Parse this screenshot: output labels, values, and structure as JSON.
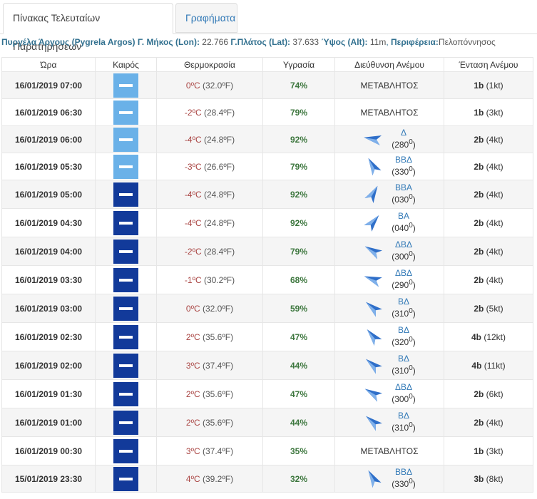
{
  "tabs": [
    {
      "label": "Πίνακας Τελευταίων Παρατηρήσεων"
    },
    {
      "label": "Γραφήματα"
    }
  ],
  "station": {
    "name": "Πυργέλα Άργους (Pygrela Argos)",
    "lon_label": "Γ. Μήκος (Lon):",
    "lon": "22.766",
    "lat_label": "Γ.Πλάτος (Lat):",
    "lat": "37.633",
    "alt_label": "Ύψος (Alt):",
    "alt": "11m",
    "region_label": "Περιφέρεια:",
    "region": "Πελοπόννησος"
  },
  "columns": [
    "Ώρα",
    "Καιρός",
    "Θερμοκρασία",
    "Υγρασία",
    "Διεύθυνση Ανέμου",
    "Ένταση Ανέμου"
  ],
  "rows": [
    {
      "time": "16/01/2019 07:00",
      "weather": "light",
      "temp_c": "0",
      "temp_f": "(32.0",
      "humidity": "74%",
      "dir": "ΜΕΤΑΒΛΗΤΟΣ",
      "deg": null,
      "bf": "1b",
      "kt": "(1kt)"
    },
    {
      "time": "16/01/2019 06:30",
      "weather": "light",
      "temp_c": "-2",
      "temp_f": "(28.4",
      "humidity": "79%",
      "dir": "ΜΕΤΑΒΛΗΤΟΣ",
      "deg": null,
      "bf": "1b",
      "kt": "(3kt)"
    },
    {
      "time": "16/01/2019 06:00",
      "weather": "light",
      "temp_c": "-4",
      "temp_f": "(24.8",
      "humidity": "92%",
      "dir": "Δ",
      "deg": "280",
      "bf": "2b",
      "kt": "(4kt)"
    },
    {
      "time": "16/01/2019 05:30",
      "weather": "light",
      "temp_c": "-3",
      "temp_f": "(26.6",
      "humidity": "79%",
      "dir": "ΒΒΔ",
      "deg": "330",
      "bf": "2b",
      "kt": "(4kt)"
    },
    {
      "time": "16/01/2019 05:00",
      "weather": "dark",
      "temp_c": "-4",
      "temp_f": "(24.8",
      "humidity": "92%",
      "dir": "ΒΒΑ",
      "deg": "030",
      "bf": "2b",
      "kt": "(4kt)"
    },
    {
      "time": "16/01/2019 04:30",
      "weather": "dark",
      "temp_c": "-4",
      "temp_f": "(24.8",
      "humidity": "92%",
      "dir": "ΒΑ",
      "deg": "040",
      "bf": "2b",
      "kt": "(4kt)"
    },
    {
      "time": "16/01/2019 04:00",
      "weather": "dark",
      "temp_c": "-2",
      "temp_f": "(28.4",
      "humidity": "79%",
      "dir": "ΔΒΔ",
      "deg": "300",
      "bf": "2b",
      "kt": "(4kt)"
    },
    {
      "time": "16/01/2019 03:30",
      "weather": "dark",
      "temp_c": "-1",
      "temp_f": "(30.2",
      "humidity": "68%",
      "dir": "ΔΒΔ",
      "deg": "290",
      "bf": "2b",
      "kt": "(4kt)"
    },
    {
      "time": "16/01/2019 03:00",
      "weather": "dark",
      "temp_c": "0",
      "temp_f": "(32.0",
      "humidity": "59%",
      "dir": "ΒΔ",
      "deg": "310",
      "bf": "2b",
      "kt": "(5kt)"
    },
    {
      "time": "16/01/2019 02:30",
      "weather": "dark",
      "temp_c": "2",
      "temp_f": "(35.6",
      "humidity": "47%",
      "dir": "ΒΔ",
      "deg": "320",
      "bf": "4b",
      "kt": "(12kt)"
    },
    {
      "time": "16/01/2019 02:00",
      "weather": "dark",
      "temp_c": "3",
      "temp_f": "(37.4",
      "humidity": "44%",
      "dir": "ΒΔ",
      "deg": "310",
      "bf": "4b",
      "kt": "(11kt)"
    },
    {
      "time": "16/01/2019 01:30",
      "weather": "dark",
      "temp_c": "2",
      "temp_f": "(35.6",
      "humidity": "47%",
      "dir": "ΔΒΔ",
      "deg": "300",
      "bf": "2b",
      "kt": "(6kt)"
    },
    {
      "time": "16/01/2019 01:00",
      "weather": "dark",
      "temp_c": "2",
      "temp_f": "(35.6",
      "humidity": "44%",
      "dir": "ΒΔ",
      "deg": "310",
      "bf": "2b",
      "kt": "(4kt)"
    },
    {
      "time": "16/01/2019 00:30",
      "weather": "dark",
      "temp_c": "3",
      "temp_f": "(37.4",
      "humidity": "35%",
      "dir": "ΜΕΤΑΒΛΗΤΟΣ",
      "deg": null,
      "bf": "1b",
      "kt": "(3kt)"
    },
    {
      "time": "15/01/2019 23:30",
      "weather": "dark",
      "temp_c": "4",
      "temp_f": "(39.2",
      "humidity": "32%",
      "dir": "ΒΒΔ",
      "deg": "330",
      "bf": "3b",
      "kt": "(8kt)"
    }
  ],
  "units": {
    "c": "ºC",
    "f": "ºF)"
  },
  "colors": {
    "weather_light": "#6ab1e8",
    "weather_dark": "#123a9a",
    "arrow": "#2f6fc9",
    "temp": "#a94442",
    "humidity": "#3c763d",
    "link": "#337ab7"
  }
}
